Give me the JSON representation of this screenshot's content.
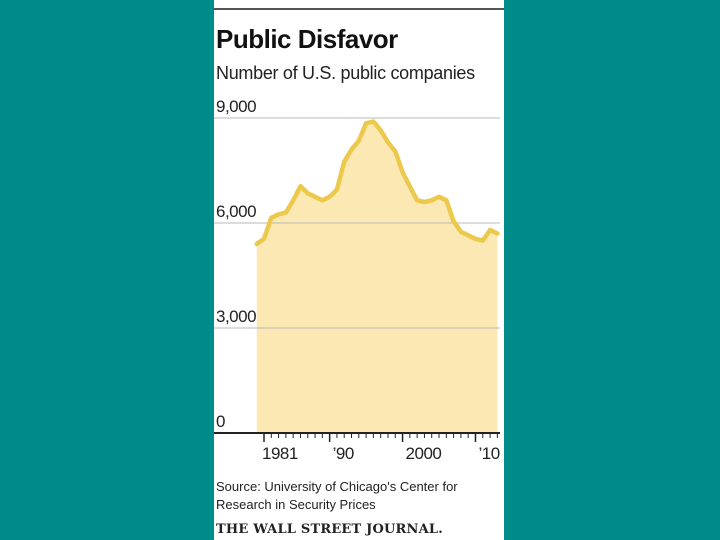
{
  "chart_data": {
    "type": "area",
    "title": "Public Disfavor",
    "subtitle": "Number of U.S. public companies",
    "source": "Source: University of Chicago's Center for Research in Security Prices",
    "credit": "THE WALL STREET JOURNAL.",
    "x": [
      1980,
      1981,
      1982,
      1983,
      1984,
      1985,
      1986,
      1987,
      1988,
      1989,
      1990,
      1991,
      1992,
      1993,
      1994,
      1995,
      1996,
      1997,
      1998,
      1999,
      2000,
      2001,
      2002,
      2003,
      2004,
      2005,
      2006,
      2007,
      2008,
      2009,
      2010,
      2011,
      2012,
      2013
    ],
    "values": [
      5400,
      5550,
      6150,
      6250,
      6300,
      6650,
      7050,
      6850,
      6750,
      6650,
      6750,
      6950,
      7750,
      8100,
      8350,
      8850,
      8900,
      8650,
      8300,
      8050,
      7450,
      7050,
      6650,
      6600,
      6650,
      6750,
      6650,
      6050,
      5750,
      5650,
      5550,
      5500,
      5800,
      5700
    ],
    "ylim": [
      0,
      9000
    ],
    "yticks": [
      0,
      3000,
      6000,
      9000
    ],
    "ytick_labels": [
      "0",
      "3,000",
      "6,000",
      "9,000"
    ],
    "xticks_labeled": [
      1981,
      1990,
      2000,
      2010
    ],
    "xtick_labels": [
      "1981",
      "’90",
      "2000",
      "’10"
    ],
    "series_color": "#ecc94b",
    "fill_color": "#fbe8b3"
  }
}
